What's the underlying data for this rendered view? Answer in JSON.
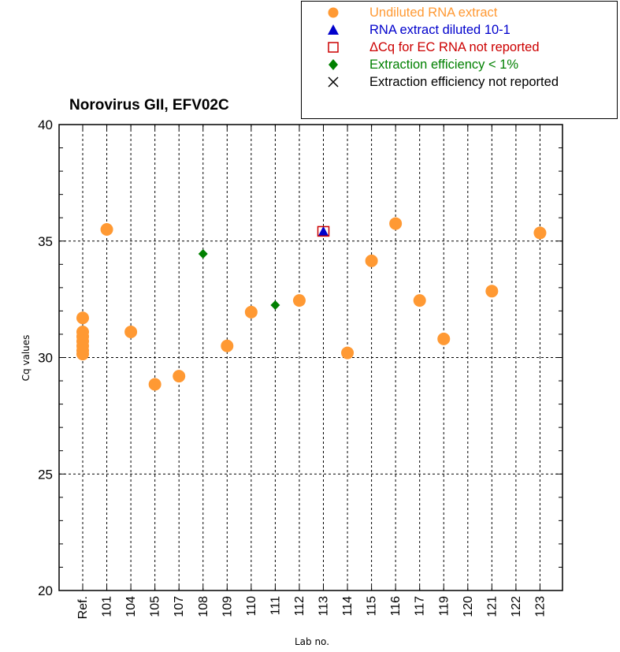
{
  "chart_data": {
    "type": "scatter",
    "title": "Norovirus GII, EFV02C",
    "xlabel": "Lab no.",
    "ylabel": "Cq values",
    "ylim": [
      20,
      40
    ],
    "yticks": [
      "20",
      "25",
      "30",
      "35",
      "40"
    ],
    "categories": [
      "Ref.",
      "101",
      "104",
      "105",
      "107",
      "108",
      "109",
      "110",
      "111",
      "112",
      "113",
      "114",
      "115",
      "116",
      "117",
      "119",
      "120",
      "121",
      "122",
      "123"
    ],
    "grid": true,
    "legend_position": "top-right",
    "series": [
      {
        "name": "Undiluted RNA extract",
        "marker": "circle",
        "color": "#FF9933",
        "points": [
          {
            "x": "Ref.",
            "y": 31.7
          },
          {
            "x": "Ref.",
            "y": 31.1
          },
          {
            "x": "Ref.",
            "y": 30.9
          },
          {
            "x": "Ref.",
            "y": 30.7
          },
          {
            "x": "Ref.",
            "y": 30.5
          },
          {
            "x": "Ref.",
            "y": 30.3
          },
          {
            "x": "Ref.",
            "y": 30.15
          },
          {
            "x": "101",
            "y": 35.5
          },
          {
            "x": "104",
            "y": 31.1
          },
          {
            "x": "105",
            "y": 28.85
          },
          {
            "x": "107",
            "y": 29.2
          },
          {
            "x": "109",
            "y": 30.5
          },
          {
            "x": "110",
            "y": 31.95
          },
          {
            "x": "112",
            "y": 32.45
          },
          {
            "x": "114",
            "y": 30.2
          },
          {
            "x": "115",
            "y": 34.15
          },
          {
            "x": "116",
            "y": 35.75
          },
          {
            "x": "117",
            "y": 32.45
          },
          {
            "x": "119",
            "y": 30.8
          },
          {
            "x": "121",
            "y": 32.85
          },
          {
            "x": "123",
            "y": 35.35
          }
        ]
      },
      {
        "name": "RNA extract diluted 10-1",
        "marker": "triangle",
        "color": "#0000CC",
        "points": [
          {
            "x": "113",
            "y": 35.4
          }
        ]
      },
      {
        "name": "ΔCq for EC RNA not reported",
        "marker": "open-square",
        "color": "#CC0000",
        "points": [
          {
            "x": "113",
            "y": 35.4
          }
        ]
      },
      {
        "name": "Extraction efficiency < 1%",
        "marker": "diamond",
        "color": "#008000",
        "points": [
          {
            "x": "108",
            "y": 34.45
          },
          {
            "x": "111",
            "y": 32.25
          }
        ]
      },
      {
        "name": "Extraction efficiency not reported",
        "marker": "x",
        "color": "#000000",
        "points": []
      }
    ]
  }
}
